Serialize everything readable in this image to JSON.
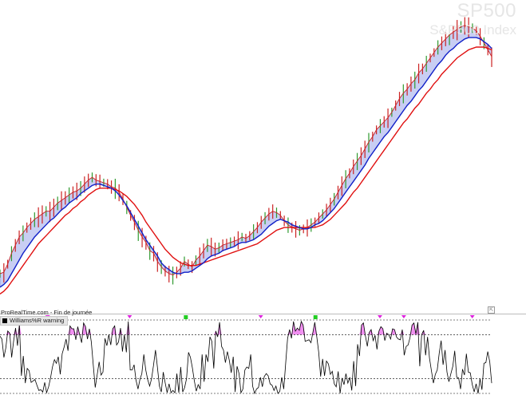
{
  "header": {
    "symbol": "SP500",
    "name": "S&P500 Index"
  },
  "indicator": {
    "source_label": "ProRealTime.com - Fin de journée",
    "legend_label": "Williams%R warning",
    "expand_icon": "maximize-icon"
  },
  "colors": {
    "price": "#cc2222",
    "bar": "#2f9a2f",
    "fast_ma": "#1020c8",
    "slow_ma": "#e01010",
    "band_fill": "#9aa6ea",
    "band_stroke": "#7a88dd",
    "williams": "#000000",
    "overbought_fill": "#f08cf0",
    "signal_sell": "#dd22dd",
    "signal_buy": "#22cc22",
    "threshold": "#000000"
  },
  "chart_data": [
    {
      "type": "line",
      "panel": "price",
      "series": [
        {
          "style": "price-bars",
          "values": [
            3,
            4,
            10,
            18,
            24,
            30,
            33,
            37,
            40,
            43,
            45,
            47,
            49,
            49,
            52,
            55,
            57,
            59,
            61,
            63,
            64,
            66,
            69,
            72,
            74,
            72,
            71,
            70,
            69,
            67,
            66,
            63,
            58,
            52,
            46,
            41,
            35,
            30,
            26,
            20,
            18,
            12,
            8,
            5,
            3,
            2,
            4,
            7,
            12,
            10,
            8,
            13,
            16,
            20,
            24,
            23,
            21,
            22,
            24,
            25,
            26,
            27,
            28,
            30,
            29,
            31,
            34,
            37,
            41,
            44,
            47,
            49,
            48,
            46,
            42,
            39,
            37,
            36,
            35,
            36,
            37,
            39,
            41,
            44,
            47,
            50,
            54,
            58,
            63,
            68,
            73,
            77,
            82,
            86,
            90,
            95,
            100,
            104,
            109,
            112,
            115,
            118,
            122,
            127,
            132,
            136,
            139,
            143,
            146,
            151,
            154,
            158,
            162,
            166,
            170,
            173,
            176,
            179,
            181,
            183,
            185,
            186,
            185,
            184,
            182,
            178,
            173,
            168,
            163
          ]
        },
        {
          "name": "",
          "style": "fast-ma",
          "values": [
            -7,
            -5,
            -2,
            3,
            8,
            13,
            18,
            22,
            26,
            30,
            33,
            36,
            39,
            42,
            44,
            47,
            50,
            52,
            55,
            57,
            59,
            62,
            64,
            66,
            68,
            69,
            69,
            68,
            67,
            66,
            64,
            61,
            57,
            53,
            48,
            43,
            38,
            33,
            28,
            24,
            20,
            16,
            11,
            8,
            6,
            4,
            3,
            3,
            4,
            4,
            5,
            7,
            9,
            11,
            14,
            16,
            17,
            18,
            20,
            21,
            22,
            23,
            25,
            26,
            26,
            27,
            28,
            30,
            32,
            35,
            38,
            40,
            42,
            43,
            42,
            41,
            39,
            38,
            37,
            36,
            36,
            37,
            39,
            40,
            42,
            45,
            48,
            51,
            55,
            59,
            63,
            67,
            71,
            75,
            79,
            83,
            88,
            92,
            96,
            100,
            104,
            107,
            111,
            115,
            119,
            123,
            127,
            130,
            134,
            138,
            141,
            145,
            149,
            153,
            157,
            160,
            164,
            167,
            169,
            172,
            174,
            176,
            177,
            177,
            177,
            176,
            174,
            172,
            169
          ]
        },
        {
          "name": "",
          "style": "slow-ma",
          "values": [
            -12,
            -10,
            -7,
            -3,
            1,
            5,
            9,
            13,
            17,
            21,
            25,
            28,
            31,
            34,
            37,
            40,
            43,
            46,
            48,
            51,
            53,
            56,
            58,
            61,
            63,
            65,
            66,
            66,
            66,
            66,
            65,
            64,
            62,
            60,
            57,
            54,
            50,
            46,
            41,
            37,
            33,
            29,
            25,
            21,
            18,
            15,
            13,
            11,
            10,
            9,
            9,
            9,
            10,
            11,
            12,
            13,
            14,
            15,
            16,
            17,
            18,
            19,
            20,
            21,
            22,
            23,
            24,
            25,
            27,
            29,
            31,
            33,
            35,
            36,
            37,
            37,
            37,
            37,
            37,
            37,
            37,
            37,
            37,
            38,
            39,
            41,
            43,
            46,
            49,
            52,
            55,
            59,
            63,
            66,
            70,
            74,
            78,
            82,
            86,
            90,
            94,
            98,
            102,
            106,
            110,
            114,
            117,
            121,
            125,
            128,
            132,
            136,
            139,
            143,
            146,
            150,
            153,
            156,
            159,
            162,
            164,
            166,
            168,
            169,
            170,
            170,
            170,
            169,
            168
          ]
        }
      ],
      "ylim": [
        -20,
        200
      ]
    },
    {
      "type": "line",
      "panel": "indicator",
      "series": [
        {
          "name": "Williams%R warning",
          "values": [
            -22,
            -26,
            -51,
            -38,
            -15,
            -18,
            -51,
            -29,
            -11,
            -35,
            -6,
            -76,
            -49,
            -86,
            -66,
            -69,
            -85,
            -83,
            -81,
            -89,
            -96,
            -95,
            -98,
            -85,
            -99,
            -91,
            -79,
            -64,
            -54,
            -59,
            -50,
            -74,
            -46,
            -37,
            -26,
            -42,
            -8,
            -12,
            -12,
            -27,
            -9,
            -20,
            -31,
            -4,
            -9,
            -26,
            -12,
            -30,
            -62,
            -92,
            -75,
            -57,
            -75,
            -71,
            -25,
            -35,
            -20,
            -34,
            -12,
            -8,
            -34,
            -30,
            -11,
            -43,
            -20,
            -44,
            -2,
            -68,
            -68,
            -61,
            -82,
            -94,
            -81,
            -73,
            -47,
            -68,
            -81,
            -90,
            -80,
            -62,
            -41,
            -64,
            -90,
            -98,
            -71,
            -86,
            -99,
            -87,
            -99,
            -96,
            -99,
            -73,
            -99,
            -64,
            -98,
            -92,
            -80,
            -44,
            -51,
            -65,
            -83,
            -97,
            -88,
            -94,
            -47,
            -84,
            -47,
            -57,
            -23,
            -29,
            -66,
            -15,
            -23,
            -3,
            -36,
            -41,
            -58,
            -43,
            -55,
            -72,
            -50,
            -98,
            -63,
            -73,
            -99,
            -94,
            -68,
            -64,
            -66,
            -47,
            -90,
            -100,
            -94,
            -92,
            -78,
            -91,
            -77,
            -73,
            -76,
            -87,
            -89,
            -96,
            -90,
            -100,
            -97,
            -78,
            -94,
            -59,
            -25,
            -13,
            -25,
            -2,
            -15,
            -11,
            -14,
            -2,
            -7,
            -29,
            -28,
            -27,
            -31,
            -17,
            -3,
            -23,
            -44,
            -77,
            -53,
            -76,
            -56,
            -60,
            -74,
            -70,
            -87,
            -91,
            -70,
            -100,
            -79,
            -88,
            -73,
            -86,
            -78,
            -96,
            -56,
            -90,
            -33,
            -49,
            -7,
            -4,
            -21,
            -36,
            -17,
            -13,
            -28,
            -21,
            -40,
            -15,
            -9,
            -12,
            -28,
            -18,
            -20,
            -26,
            -12,
            -13,
            -23,
            -26,
            -27,
            -13,
            -48,
            -36,
            -34,
            -24,
            -7,
            -4,
            -19,
            -3,
            -63,
            -20,
            -14,
            -48,
            -23,
            -52,
            -69,
            -86,
            -74,
            -68,
            -45,
            -28,
            -61,
            -41,
            -71,
            -84,
            -73,
            -63,
            -42,
            -78,
            -79,
            -94,
            -67,
            -75,
            -46,
            -71,
            -72,
            -88,
            -98,
            -87,
            -100,
            -80,
            -95,
            -59,
            -58,
            -43,
            -57,
            -86
          ]
        }
      ],
      "thresholds": [
        -20,
        -80
      ],
      "ylim": [
        -100,
        0
      ]
    }
  ]
}
